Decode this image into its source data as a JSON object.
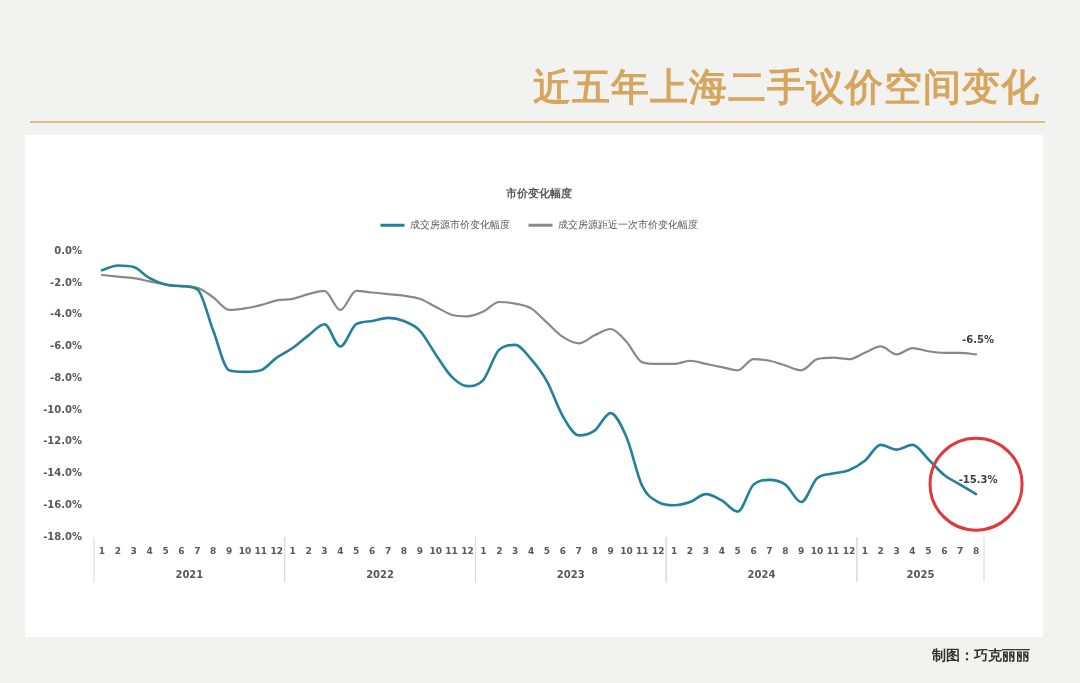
{
  "chart_data": {
    "type": "line",
    "title": "近五年上海二手议价空间变化",
    "subtitle": "市价变化幅度",
    "x": [
      "2021-01",
      "2021-02",
      "2021-03",
      "2021-04",
      "2021-05",
      "2021-06",
      "2021-07",
      "2021-08",
      "2021-09",
      "2021-10",
      "2021-11",
      "2021-12",
      "2022-01",
      "2022-02",
      "2022-03",
      "2022-04",
      "2022-05",
      "2022-06",
      "2022-07",
      "2022-08",
      "2022-09",
      "2022-10",
      "2022-11",
      "2022-12",
      "2023-01",
      "2023-02",
      "2023-03",
      "2023-04",
      "2023-05",
      "2023-06",
      "2023-07",
      "2023-08",
      "2023-09",
      "2023-10",
      "2023-11",
      "2023-12",
      "2024-01",
      "2024-02",
      "2024-03",
      "2024-04",
      "2024-05",
      "2024-06",
      "2024-07",
      "2024-08",
      "2024-09",
      "2024-10",
      "2024-11",
      "2024-12",
      "2025-01",
      "2025-02",
      "2025-03",
      "2025-04",
      "2025-05",
      "2025-06",
      "2025-07",
      "2025-08"
    ],
    "xlim": [
      "2021-01",
      "2025-08"
    ],
    "xticks": [
      {
        "value": "2021-01",
        "label": "1"
      },
      {
        "value": "2021-02",
        "label": "2"
      },
      {
        "value": "2021-03",
        "label": "3"
      },
      {
        "value": "2021-04",
        "label": "4"
      },
      {
        "value": "2021-05",
        "label": "5"
      },
      {
        "value": "2021-06",
        "label": "6"
      },
      {
        "value": "2021-07",
        "label": "7"
      },
      {
        "value": "2021-08",
        "label": "8"
      },
      {
        "value": "2021-09",
        "label": "9"
      },
      {
        "value": "2021-10",
        "label": "10"
      },
      {
        "value": "2021-11",
        "label": "11"
      },
      {
        "value": "2021-12",
        "label": "12"
      },
      {
        "value": "2022-01",
        "label": "1"
      },
      {
        "value": "2022-02",
        "label": "2"
      },
      {
        "value": "2022-03",
        "label": "3"
      },
      {
        "value": "2022-04",
        "label": "4"
      },
      {
        "value": "2022-05",
        "label": "5"
      },
      {
        "value": "2022-06",
        "label": "6"
      },
      {
        "value": "2022-07",
        "label": "7"
      },
      {
        "value": "2022-08",
        "label": "8"
      },
      {
        "value": "2022-09",
        "label": "9"
      },
      {
        "value": "2022-10",
        "label": "10"
      },
      {
        "value": "2022-11",
        "label": "11"
      },
      {
        "value": "2022-12",
        "label": "12"
      },
      {
        "value": "2023-01",
        "label": "1"
      },
      {
        "value": "2023-02",
        "label": "2"
      },
      {
        "value": "2023-03",
        "label": "3"
      },
      {
        "value": "2023-04",
        "label": "4"
      },
      {
        "value": "2023-05",
        "label": "5"
      },
      {
        "value": "2023-06",
        "label": "6"
      },
      {
        "value": "2023-07",
        "label": "7"
      },
      {
        "value": "2023-08",
        "label": "8"
      },
      {
        "value": "2023-09",
        "label": "9"
      },
      {
        "value": "2023-10",
        "label": "10"
      },
      {
        "value": "2023-11",
        "label": "11"
      },
      {
        "value": "2023-12",
        "label": "12"
      },
      {
        "value": "2024-01",
        "label": "1"
      },
      {
        "value": "2024-02",
        "label": "2"
      },
      {
        "value": "2024-03",
        "label": "3"
      },
      {
        "value": "2024-04",
        "label": "4"
      },
      {
        "value": "2024-05",
        "label": "5"
      },
      {
        "value": "2024-06",
        "label": "6"
      },
      {
        "value": "2024-07",
        "label": "7"
      },
      {
        "value": "2024-08",
        "label": "8"
      },
      {
        "value": "2024-09",
        "label": "9"
      },
      {
        "value": "2024-10",
        "label": "10"
      },
      {
        "value": "2024-11",
        "label": "11"
      },
      {
        "value": "2024-12",
        "label": "12"
      },
      {
        "value": "2025-01",
        "label": "1"
      },
      {
        "value": "2025-02",
        "label": "2"
      },
      {
        "value": "2025-03",
        "label": "3"
      },
      {
        "value": "2025-04",
        "label": "4"
      },
      {
        "value": "2025-05",
        "label": "5"
      },
      {
        "value": "2025-06",
        "label": "6"
      },
      {
        "value": "2025-07",
        "label": "7"
      },
      {
        "value": "2025-08",
        "label": "8"
      }
    ],
    "series": [
      {
        "name": "成交房源市价变化幅度",
        "color": "#24809c",
        "values": [
          -1.2,
          -0.9,
          -1.0,
          -1.7,
          -2.1,
          -2.2,
          -2.4,
          -5.0,
          -7.5,
          -7.6,
          -7.5,
          -6.7,
          -6.1,
          -5.3,
          -4.6,
          -6.0,
          -4.6,
          -4.4,
          -4.2,
          -4.4,
          -5.0,
          -6.5,
          -7.9,
          -8.5,
          -8.1,
          -6.2,
          -5.9,
          -6.8,
          -8.2,
          -10.4,
          -11.6,
          -11.3,
          -10.2,
          -11.7,
          -14.8,
          -15.8,
          -16.0,
          -15.8,
          -15.3,
          -15.7,
          -16.4,
          -14.7,
          -14.4,
          -14.7,
          -15.8,
          -14.3,
          -14.0,
          -13.8,
          -13.2,
          -12.2,
          -12.5,
          -12.2,
          -13.1,
          -14.1,
          -14.7,
          -15.3
        ],
        "value_labels": [
          null,
          null,
          null,
          null,
          null,
          null,
          null,
          null,
          null,
          null,
          null,
          null,
          null,
          null,
          null,
          null,
          null,
          null,
          null,
          null,
          null,
          null,
          null,
          null,
          null,
          null,
          null,
          null,
          null,
          null,
          null,
          null,
          null,
          null,
          null,
          null,
          null,
          null,
          null,
          null,
          null,
          null,
          null,
          null,
          null,
          null,
          null,
          null,
          null,
          null,
          null,
          null,
          null,
          null,
          null,
          "-15.3%"
        ]
      },
      {
        "name": "成交房源距近一次市价变化幅度",
        "color": "#898989",
        "values": [
          -1.5,
          -1.6,
          -1.7,
          -1.9,
          -2.1,
          -2.2,
          -2.3,
          -2.9,
          -3.7,
          -3.6,
          -3.4,
          -3.1,
          -3.0,
          -2.7,
          -2.5,
          -3.7,
          -2.5,
          -2.6,
          -2.7,
          -2.8,
          -3.0,
          -3.5,
          -4.0,
          -4.1,
          -3.8,
          -3.2,
          -3.3,
          -3.6,
          -4.5,
          -5.4,
          -5.8,
          -5.3,
          -4.9,
          -5.7,
          -7.0,
          -7.1,
          -7.1,
          -6.9,
          -7.1,
          -7.3,
          -7.5,
          -6.8,
          -6.9,
          -7.2,
          -7.5,
          -6.8,
          -6.7,
          -6.8,
          -6.4,
          -6.0,
          -6.5,
          -6.1,
          -6.3,
          -6.4,
          -6.4,
          -6.5
        ],
        "value_labels": [
          null,
          null,
          null,
          null,
          null,
          null,
          null,
          null,
          null,
          null,
          null,
          null,
          null,
          null,
          null,
          null,
          null,
          null,
          null,
          null,
          null,
          null,
          null,
          null,
          null,
          null,
          null,
          null,
          null,
          null,
          null,
          null,
          null,
          null,
          null,
          null,
          null,
          null,
          null,
          null,
          null,
          null,
          null,
          null,
          null,
          null,
          null,
          null,
          null,
          null,
          null,
          null,
          null,
          null,
          null,
          "-6.5%"
        ]
      }
    ],
    "ylim": [
      -18,
      0
    ],
    "yticks": [
      {
        "value": 0,
        "label": "0.0%"
      },
      {
        "value": -2,
        "label": "-2.0%"
      },
      {
        "value": -4,
        "label": "-4.0%"
      },
      {
        "value": -6,
        "label": "-6.0%"
      },
      {
        "value": -8,
        "label": "-8.0%"
      },
      {
        "value": -10,
        "label": "-10.0%"
      },
      {
        "value": -12,
        "label": "-12.0%"
      },
      {
        "value": -14,
        "label": "-14.0%"
      },
      {
        "value": -16,
        "label": "-16.0%"
      },
      {
        "value": -18,
        "label": "-18.0%"
      }
    ],
    "legend": "top",
    "marker": "none",
    "annotations": [
      "2021",
      "2022",
      "2023",
      "2024",
      "2025",
      "制图：巧克丽丽"
    ]
  }
}
